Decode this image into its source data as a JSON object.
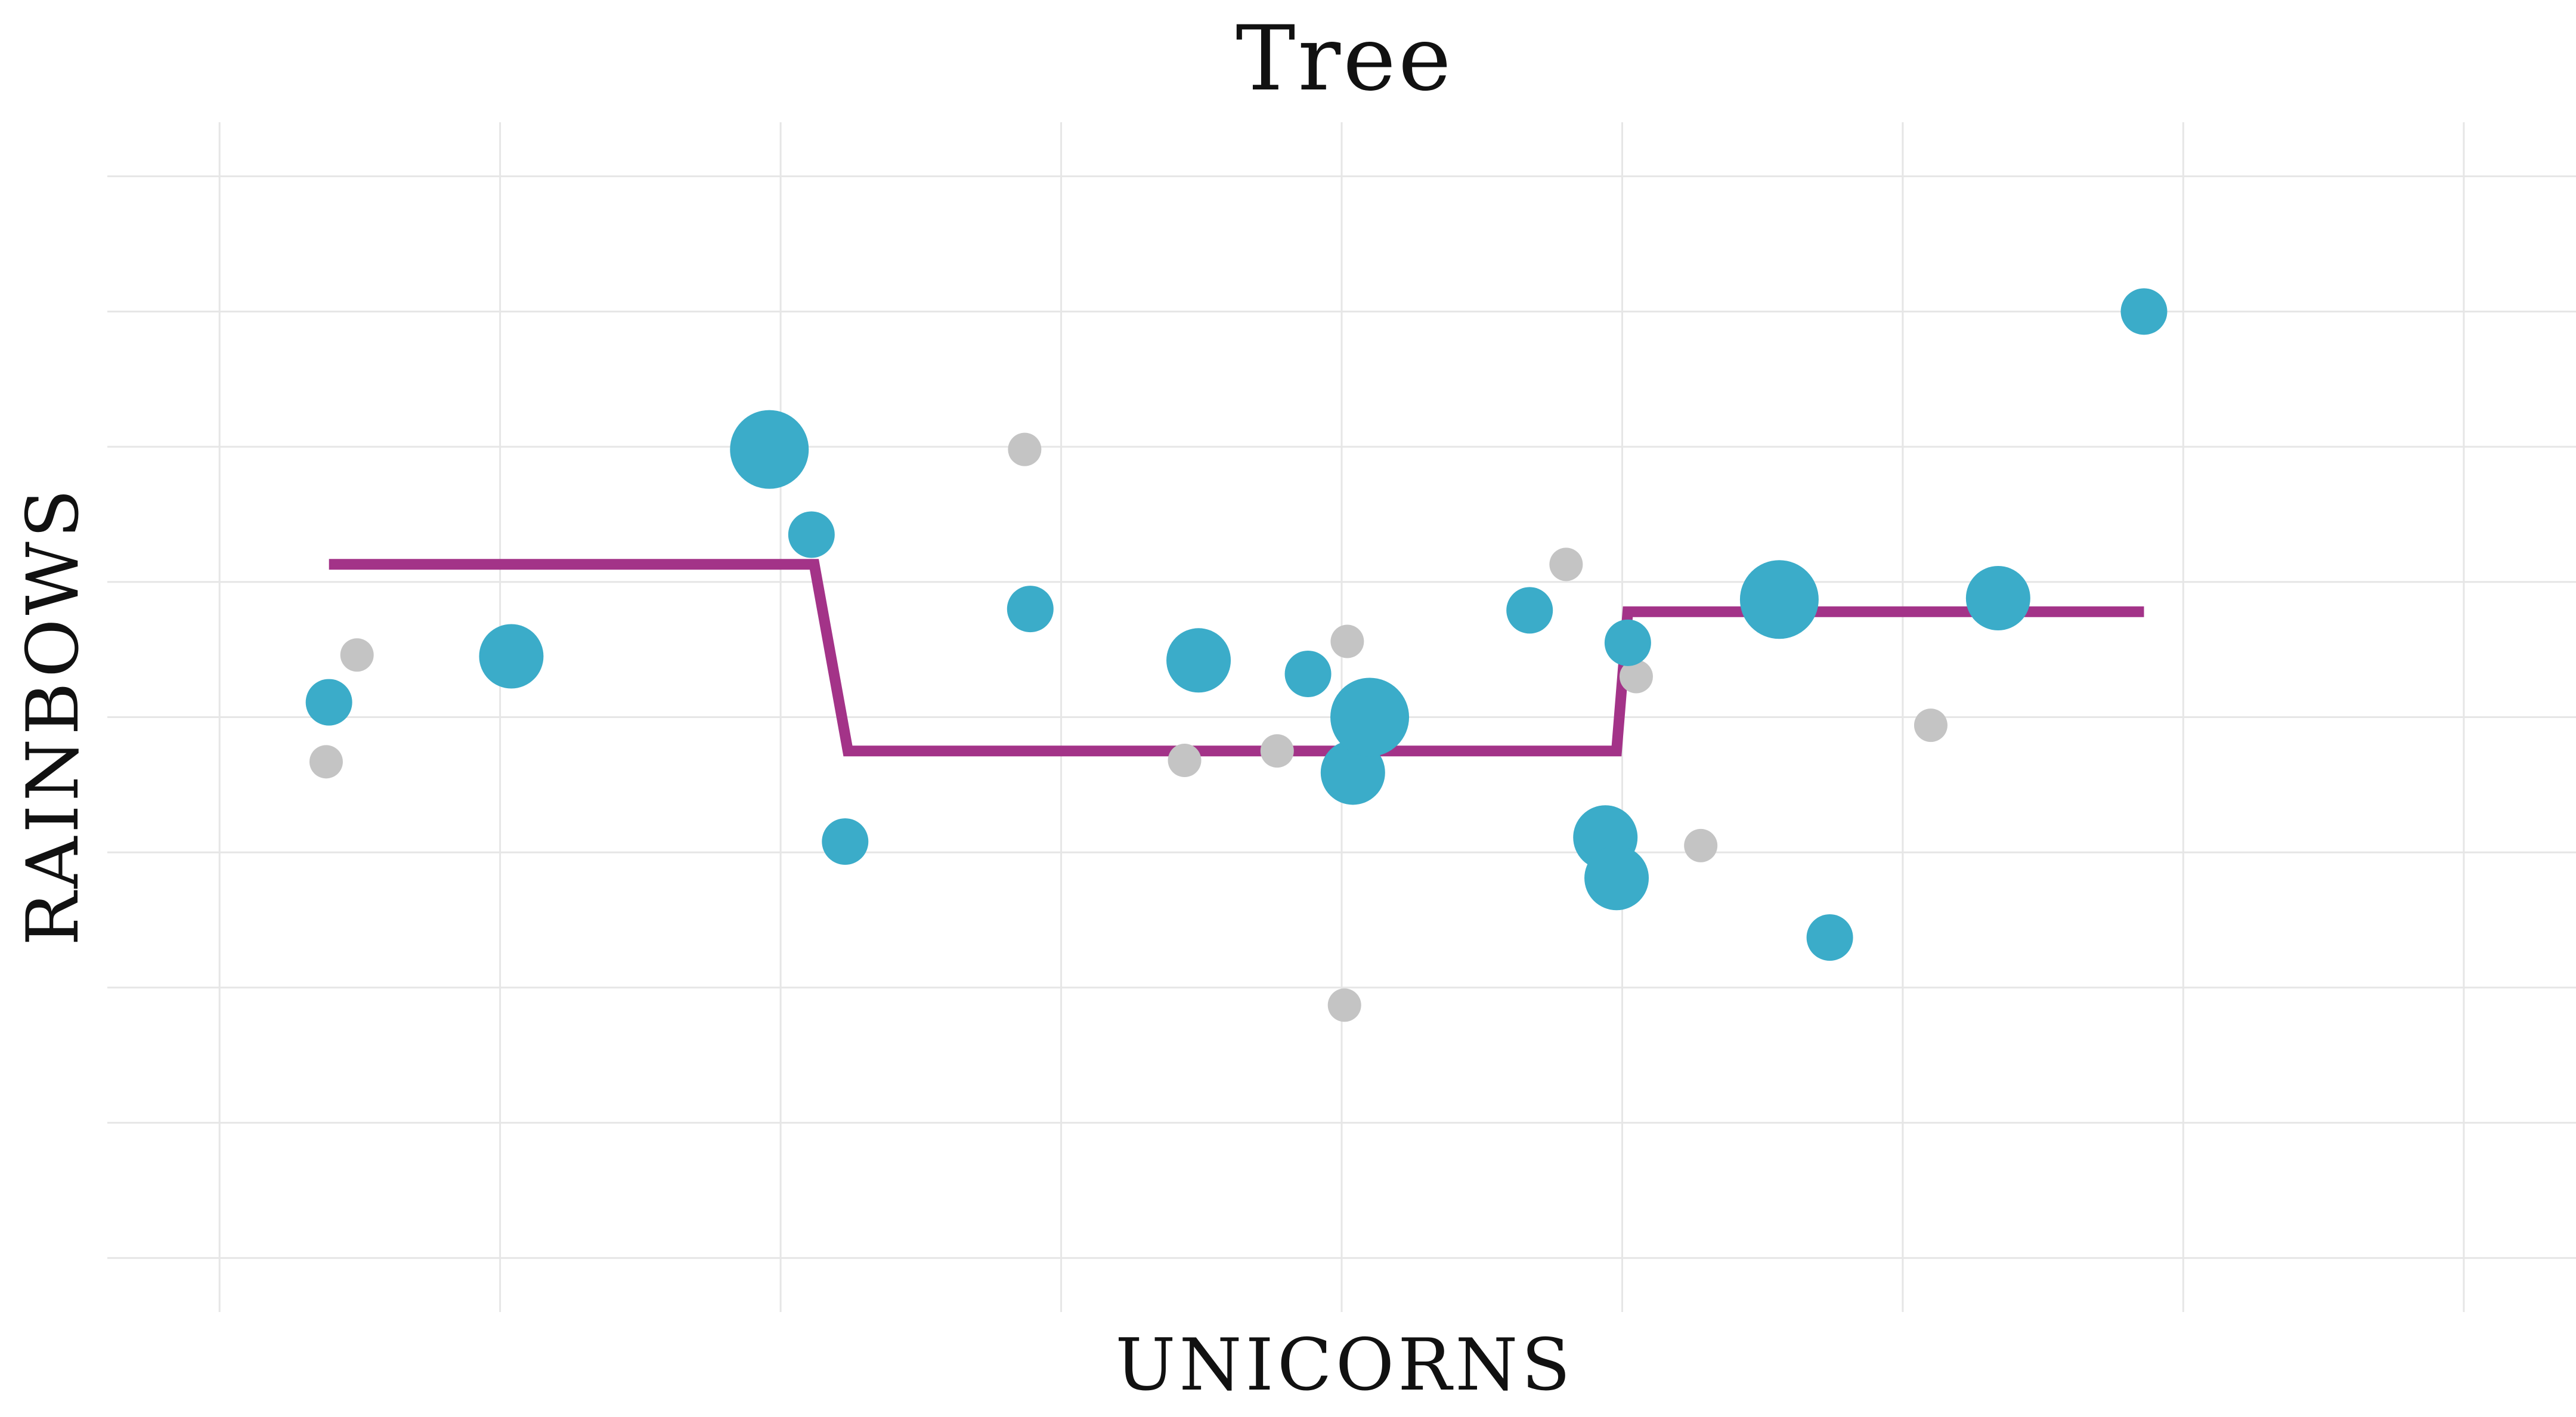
{
  "chart_data": {
    "type": "scatter",
    "title": "Tree",
    "xlabel": "UNICORNS",
    "ylabel": "RAINBOWS",
    "x_tick_labels": [],
    "y_tick_labels": [],
    "xlim": [
      -0.4,
      8.4
    ],
    "ylim": [
      -0.4,
      8.4
    ],
    "grid": true,
    "x_grid": [
      0,
      1,
      2,
      3,
      4,
      5,
      6,
      7,
      8
    ],
    "y_grid": [
      0,
      1,
      2,
      3,
      4,
      5,
      6,
      7,
      8
    ],
    "colors": {
      "training": "#3bacc9",
      "test": "#c4c4c4",
      "prediction": "#a33388",
      "grid": "#e6e6e6"
    },
    "series": [
      {
        "points": [
          {
            "x": 0.39,
            "y": 4.11,
            "size": 1.0
          },
          {
            "x": 1.04,
            "y": 4.45,
            "size": 2.0
          },
          {
            "x": 1.96,
            "y": 5.98,
            "size": 3.0
          },
          {
            "x": 2.11,
            "y": 5.35,
            "size": 1.0
          },
          {
            "x": 2.23,
            "y": 3.08,
            "size": 1.0
          },
          {
            "x": 2.89,
            "y": 4.8,
            "size": 1.0
          },
          {
            "x": 3.49,
            "y": 4.42,
            "size": 2.0
          },
          {
            "x": 3.88,
            "y": 4.32,
            "size": 1.0
          },
          {
            "x": 4.04,
            "y": 3.59,
            "size": 2.0
          },
          {
            "x": 4.1,
            "y": 4.0,
            "size": 3.0
          },
          {
            "x": 4.67,
            "y": 4.79,
            "size": 1.0
          },
          {
            "x": 4.94,
            "y": 3.11,
            "size": 2.0
          },
          {
            "x": 4.98,
            "y": 2.81,
            "size": 2.0
          },
          {
            "x": 5.02,
            "y": 4.55,
            "size": 1.0
          },
          {
            "x": 5.56,
            "y": 4.87,
            "size": 3.0
          },
          {
            "x": 5.74,
            "y": 2.37,
            "size": 1.0
          },
          {
            "x": 6.34,
            "y": 4.88,
            "size": 2.0
          },
          {
            "x": 6.86,
            "y": 7.0,
            "size": 1.0
          }
        ]
      },
      {
        "points": [
          {
            "x": 0.38,
            "y": 3.67
          },
          {
            "x": 0.49,
            "y": 4.46
          },
          {
            "x": 2.87,
            "y": 5.98
          },
          {
            "x": 3.44,
            "y": 3.68
          },
          {
            "x": 3.77,
            "y": 3.75
          },
          {
            "x": 4.02,
            "y": 4.56
          },
          {
            "x": 4.01,
            "y": 1.87
          },
          {
            "x": 4.8,
            "y": 5.13
          },
          {
            "x": 5.05,
            "y": 4.3
          },
          {
            "x": 5.28,
            "y": 3.05
          },
          {
            "x": 6.1,
            "y": 3.94
          }
        ]
      },
      {
        "type": "step-line",
        "points": [
          {
            "x": 0.39,
            "y": 5.13
          },
          {
            "x": 2.12,
            "y": 5.13
          },
          {
            "x": 2.24,
            "y": 3.75
          },
          {
            "x": 4.98,
            "y": 3.75
          },
          {
            "x": 5.02,
            "y": 4.78
          },
          {
            "x": 6.86,
            "y": 4.78
          }
        ]
      }
    ]
  }
}
